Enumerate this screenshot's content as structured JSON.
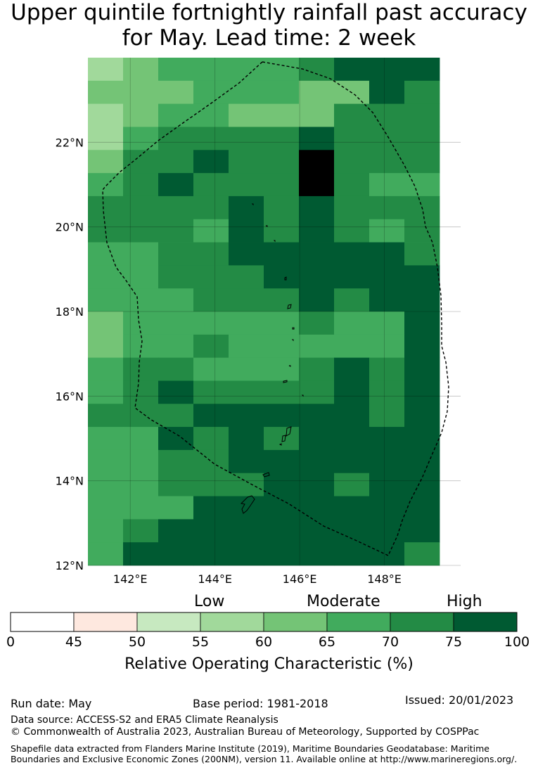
{
  "title_line1": "Upper quintile fortnightly rainfall past accuracy",
  "title_line2": "for May. Lead time: 2 week",
  "map": {
    "lon_range": [
      141,
      149.8
    ],
    "lat_range": [
      12,
      24
    ],
    "lat_ticks": [
      "12°N",
      "14°N",
      "16°N",
      "18°N",
      "20°N",
      "22°N"
    ],
    "lon_ticks": [
      "142°E",
      "144°E",
      "146°E",
      "148°E"
    ],
    "grid_rows": [
      "3455556777",
      "4445554476",
      "3455444666",
      "3566667666",
      "4667668666",
      "5676668655",
      "6666767666",
      "6665767656",
      "5566777776",
      "5566677777",
      "5556667677",
      "4555556557",
      "4556555557",
      "5665556767",
      "5676666767",
      "6667777767",
      "5576767777",
      "5566777777",
      "5566677677",
      "5557777777",
      "5677777777",
      "5777777776"
    ]
  },
  "colorbar": {
    "colors": [
      "#ffffff",
      "#fee8df",
      "#c7e9c0",
      "#a1d99b",
      "#74c476",
      "#41ab5d",
      "#238b45",
      "#005a32"
    ],
    "bounds": [
      "0",
      "45",
      "50",
      "55",
      "60",
      "65",
      "70",
      "75",
      "100"
    ],
    "categories": [
      "Low",
      "Moderate",
      "High"
    ],
    "label": "Relative Operating Characteristic (%)"
  },
  "footer": {
    "run_date": "Run date: May",
    "base_period": "Base period: 1981-2018",
    "issued": "Issued: 20/01/2023",
    "data_source": "Data source: ACCESS-S2 and ERA5 Climate Reanalysis",
    "copyright": "© Commonwealth of Australia 2023, Australian Bureau of Meteorology, Supported by COSPPac",
    "shapefile": "Shapefile data extracted from Flanders Marine Institute (2019), Maritime Boundaries Geodatabase: Maritime Boundaries and Exclusive Economic Zones (200NM), version 11. Available online at http://www.marineregions.org/."
  }
}
